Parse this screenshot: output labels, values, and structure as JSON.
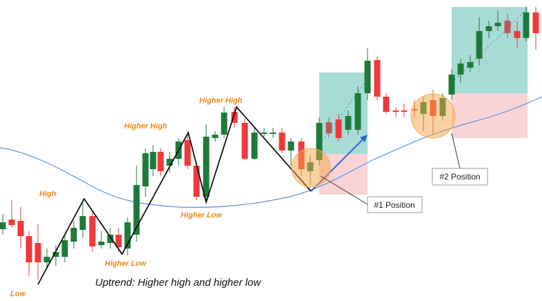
{
  "labels": [
    "Low",
    "High",
    "Higher Low",
    "Higher High",
    "Higher Low",
    "Higher High"
  ],
  "caption": "Uptrend: Higher high and higher low",
  "positions": [
    "#1 Position",
    "#2 Position"
  ]
}
